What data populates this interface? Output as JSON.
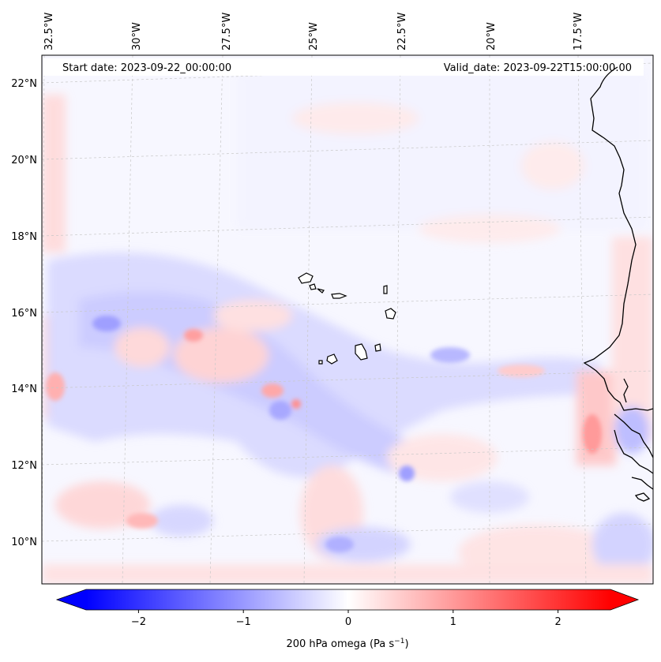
{
  "header": {
    "start_date": "Start date: 2023-09-22_00:00:00",
    "valid_date": "Valid_date: 2023-09-22T15:00:00.00"
  },
  "axes": {
    "lon_labels": [
      "32.5°W",
      "30°W",
      "27.5°W",
      "25°W",
      "22.5°W",
      "20°W",
      "17.5°W"
    ],
    "lat_labels": [
      "22°N",
      "20°N",
      "18°N",
      "16°N",
      "14°N",
      "12°N",
      "10°N"
    ]
  },
  "colorbar": {
    "ticks": [
      "−2",
      "−1",
      "0",
      "1",
      "2"
    ],
    "tick_values": [
      -2,
      -1,
      0,
      1,
      2
    ],
    "range": [
      -2.5,
      2.5
    ],
    "label_main": "200 hPa omega (Pa s",
    "label_exp": "−1",
    "label_close": ")",
    "colors": {
      "min": "#0000ff",
      "mid": "#ffffff",
      "max": "#ff0000"
    }
  },
  "map": {
    "coastline_color": "#000000",
    "gridline_color": "#bbbbbb"
  }
}
